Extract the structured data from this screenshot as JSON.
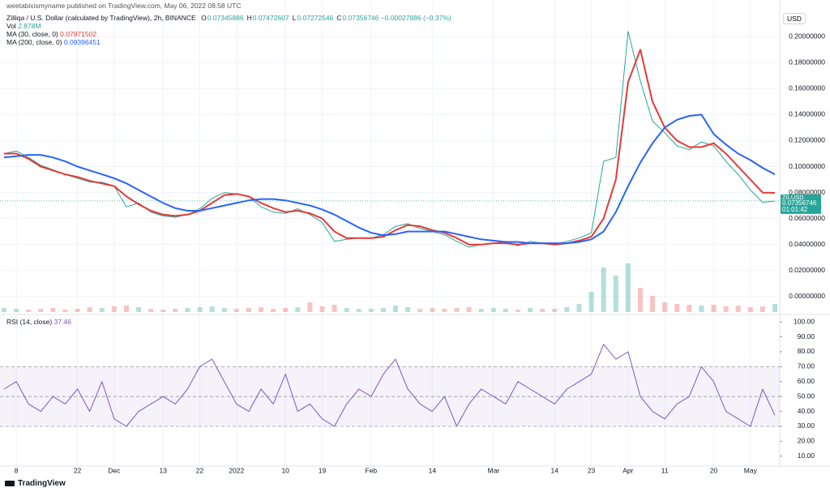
{
  "caption": "weetabixismyname published on TradingView.com, May 06, 2022 08:58 UTC",
  "brand": "TradingView",
  "chart_data": [
    {
      "type": "line",
      "title": "Zilliqa / U.S. Dollar (calculated by TradingView), 2h, BINANCE",
      "ohlc": [
        {
          "label": "O",
          "value": 0.07345886
        },
        {
          "label": "H",
          "value": 0.07472607
        },
        {
          "label": "L",
          "value": 0.07272546
        },
        {
          "label": "C",
          "value": 0.07356746
        }
      ],
      "change": "−0.00027886 (−0.37%)",
      "currency": "USD",
      "symbol": "ZILUSD",
      "countdown": "01:01:42",
      "volume_name": "Vol",
      "volume_last": "2.878M",
      "color": "#26a69a",
      "up_color": "#26a69a",
      "down_color": "#ef5350",
      "categories": [
        null,
        "8",
        null,
        null,
        null,
        null,
        "22",
        null,
        null,
        "Dec",
        null,
        null,
        null,
        "13",
        null,
        null,
        "22",
        null,
        null,
        "2022",
        null,
        null,
        null,
        "10",
        null,
        null,
        "19",
        null,
        null,
        null,
        "Feb",
        null,
        null,
        null,
        null,
        "14",
        null,
        null,
        null,
        null,
        "Mar",
        null,
        null,
        null,
        null,
        "14",
        null,
        null,
        "23",
        null,
        null,
        "Apr",
        null,
        null,
        "11",
        null,
        null,
        null,
        "20",
        null,
        null,
        "May",
        null,
        null
      ],
      "values": [
        0.11,
        0.112,
        0.107,
        0.101,
        0.0975,
        0.094,
        0.091,
        0.088,
        0.088,
        0.085,
        0.069,
        0.072,
        0.065,
        0.062,
        0.061,
        0.063,
        0.0675,
        0.0755,
        0.08,
        0.079,
        0.077,
        0.069,
        0.065,
        0.064,
        0.0675,
        0.063,
        0.057,
        0.0425,
        0.044,
        0.045,
        0.045,
        0.0475,
        0.054,
        0.056,
        0.0525,
        0.05,
        0.0475,
        0.0425,
        0.038,
        0.04,
        0.041,
        0.0425,
        0.039,
        0.0425,
        0.041,
        0.04,
        0.0425,
        0.045,
        0.049,
        0.104,
        0.107,
        0.204,
        0.166,
        0.135,
        0.126,
        0.116,
        0.113,
        0.119,
        0.116,
        0.104,
        0.094,
        0.082,
        0.0725,
        0.0735
      ],
      "volume": [
        5,
        4,
        3,
        4,
        5,
        3,
        4,
        6,
        5,
        7,
        8,
        6,
        4,
        3,
        4,
        5,
        6,
        7,
        5,
        4,
        5,
        6,
        4,
        5,
        6,
        12,
        7,
        9,
        5,
        4,
        4,
        5,
        8,
        6,
        4,
        5,
        4,
        5,
        6,
        4,
        5,
        4,
        3,
        5,
        4,
        4,
        6,
        10,
        25,
        55,
        45,
        60,
        30,
        20,
        12,
        10,
        9,
        8,
        9,
        7,
        8,
        6,
        7,
        10
      ],
      "series": [
        {
          "name": "MA (30, close, 0)",
          "color": "#e53935",
          "last": 0.07971502,
          "values": [
            0.11,
            0.11,
            0.106,
            0.1,
            0.097,
            0.094,
            0.092,
            0.089,
            0.087,
            0.085,
            0.077,
            0.071,
            0.066,
            0.063,
            0.062,
            0.063,
            0.066,
            0.072,
            0.078,
            0.079,
            0.077,
            0.072,
            0.068,
            0.065,
            0.066,
            0.064,
            0.06,
            0.05,
            0.045,
            0.045,
            0.045,
            0.046,
            0.051,
            0.055,
            0.054,
            0.051,
            0.049,
            0.045,
            0.04,
            0.04,
            0.041,
            0.041,
            0.04,
            0.041,
            0.041,
            0.04,
            0.041,
            0.043,
            0.046,
            0.06,
            0.09,
            0.165,
            0.19,
            0.15,
            0.13,
            0.12,
            0.115,
            0.115,
            0.118,
            0.11,
            0.1,
            0.09,
            0.08,
            0.0797
          ]
        },
        {
          "name": "MA (200, close, 0)",
          "color": "#2962ff",
          "last": 0.09396451,
          "values": [
            0.107,
            0.108,
            0.109,
            0.109,
            0.107,
            0.104,
            0.1,
            0.097,
            0.094,
            0.091,
            0.087,
            0.082,
            0.077,
            0.072,
            0.068,
            0.066,
            0.066,
            0.068,
            0.07,
            0.072,
            0.074,
            0.075,
            0.075,
            0.074,
            0.072,
            0.07,
            0.067,
            0.063,
            0.058,
            0.053,
            0.049,
            0.047,
            0.048,
            0.05,
            0.05,
            0.05,
            0.05,
            0.048,
            0.046,
            0.044,
            0.043,
            0.042,
            0.042,
            0.041,
            0.041,
            0.041,
            0.041,
            0.042,
            0.044,
            0.05,
            0.065,
            0.085,
            0.103,
            0.118,
            0.13,
            0.136,
            0.139,
            0.14,
            0.125,
            0.117,
            0.11,
            0.105,
            0.099,
            0.094
          ]
        }
      ],
      "ylim": [
        -0.012,
        0.222
      ],
      "yticks": [
        {
          "value": 0,
          "label": "0.00000000"
        },
        {
          "value": 0.02,
          "label": "0.02000000"
        },
        {
          "value": 0.04,
          "label": "0.04000000"
        },
        {
          "value": 0.06,
          "label": "0.06000000"
        },
        {
          "value": 0.08,
          "label": "0.08000000"
        },
        {
          "value": 0.1,
          "label": "0.10000000"
        },
        {
          "value": 0.12,
          "label": "0.12000000"
        },
        {
          "value": 0.14,
          "label": "0.14000000"
        },
        {
          "value": 0.16,
          "label": "0.16000000"
        },
        {
          "value": 0.18,
          "label": "0.18000000"
        },
        {
          "value": 0.2,
          "label": "0.20000000"
        }
      ],
      "grid": true
    },
    {
      "type": "line",
      "title": "RSI (14, close)",
      "last": 37.46,
      "color": "#7e57c2",
      "band": [
        30,
        70
      ],
      "midline": 50,
      "values": [
        55,
        60,
        45,
        40,
        50,
        45,
        55,
        40,
        60,
        35,
        30,
        40,
        45,
        50,
        45,
        55,
        70,
        75,
        60,
        45,
        40,
        55,
        45,
        65,
        40,
        45,
        35,
        30,
        45,
        55,
        50,
        65,
        75,
        55,
        45,
        40,
        50,
        30,
        45,
        55,
        50,
        45,
        60,
        55,
        50,
        45,
        55,
        60,
        65,
        85,
        75,
        80,
        50,
        40,
        35,
        45,
        50,
        70,
        60,
        40,
        35,
        30,
        55,
        37.46
      ],
      "ylim": [
        5,
        102.8
      ],
      "yticks": [
        {
          "value": 10,
          "label": "10.00"
        },
        {
          "value": 20,
          "label": "20.00"
        },
        {
          "value": 30,
          "label": "30.00"
        },
        {
          "value": 40,
          "label": "40.00"
        },
        {
          "value": 50,
          "label": "50.00"
        },
        {
          "value": 60,
          "label": "60.00"
        },
        {
          "value": 70,
          "label": "70.00"
        },
        {
          "value": 80,
          "label": "80.00"
        },
        {
          "value": 90,
          "label": "90.00"
        },
        {
          "value": 100,
          "label": "100.00"
        }
      ],
      "grid": true
    }
  ]
}
